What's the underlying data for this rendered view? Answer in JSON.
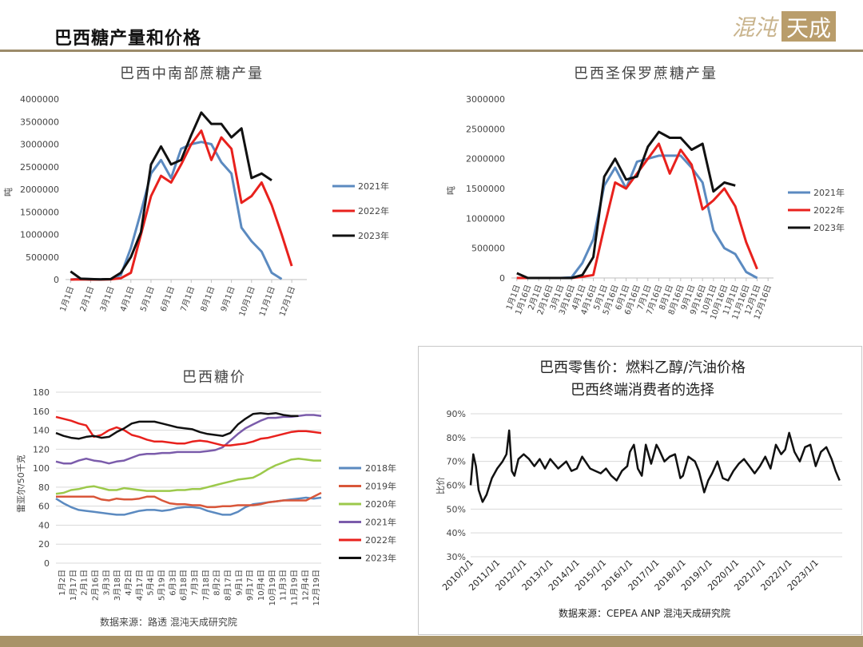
{
  "header": {
    "title": "巴西糖产量和价格"
  },
  "logo": {
    "text_left": "混沌",
    "text_right": "天成"
  },
  "colors": {
    "blue": "#5b8ac0",
    "red": "#e8211d",
    "black": "#111111",
    "orange": "#d9573a",
    "green": "#9cc94b",
    "purple": "#7b5cab",
    "rule": "#9c8b6a",
    "axis": "#bfbfbf",
    "grid": "#d9d9d9"
  },
  "chart_data": [
    {
      "type": "line",
      "title": "巴西中南部蔗糖产量",
      "ylabel": "吨",
      "ylim": [
        0,
        4000000
      ],
      "yticks": [
        0,
        500000,
        1000000,
        1500000,
        2000000,
        2500000,
        3000000,
        3500000,
        4000000
      ],
      "x_points": 24,
      "xtick_labels": [
        "1月1日",
        "2月1日",
        "3月1日",
        "4月1日",
        "5月1日",
        "6月1日",
        "7月1日",
        "8月1日",
        "9月1日",
        "10月1日",
        "11月1日",
        "12月1日"
      ],
      "series": [
        {
          "name": "2021年",
          "color": "#5b8ac0",
          "values": [
            0,
            20000,
            10000,
            5000,
            10000,
            100000,
            700000,
            1500000,
            2350000,
            2650000,
            2250000,
            2900000,
            3000000,
            3050000,
            3000000,
            2600000,
            2350000,
            1150000,
            850000,
            620000,
            150000,
            10000
          ]
        },
        {
          "name": "2022年",
          "color": "#e8211d",
          "values": [
            0,
            5000,
            0,
            0,
            5000,
            30000,
            150000,
            1000000,
            1850000,
            2300000,
            2150000,
            2550000,
            3000000,
            3300000,
            2650000,
            3150000,
            2900000,
            1700000,
            1850000,
            2150000,
            1650000,
            1000000,
            300000
          ]
        },
        {
          "name": "2023年",
          "color": "#111111",
          "values": [
            180000,
            20000,
            10000,
            5000,
            10000,
            150000,
            500000,
            1050000,
            2550000,
            2950000,
            2550000,
            2650000,
            3200000,
            3700000,
            3450000,
            3450000,
            3150000,
            3350000,
            2250000,
            2350000,
            2200000
          ]
        }
      ]
    },
    {
      "type": "line",
      "title": "巴西圣保罗蔗糖产量",
      "ylabel": "吨",
      "ylim": [
        0,
        3000000
      ],
      "yticks": [
        0,
        500000,
        1000000,
        1500000,
        2000000,
        2500000,
        3000000
      ],
      "x_points": 24,
      "xtick_labels": [
        "1月1日",
        "1月16日",
        "2月1日",
        "2月16日",
        "3月1日",
        "3月16日",
        "4月1日",
        "4月16日",
        "5月1日",
        "5月16日",
        "6月1日",
        "6月16日",
        "7月1日",
        "7月16日",
        "8月1日",
        "8月16日",
        "9月1日",
        "9月16日",
        "10月1日",
        "10月16日",
        "11月1日",
        "11月16日",
        "12月1日",
        "12月16日"
      ],
      "series": [
        {
          "name": "2021年",
          "color": "#5b8ac0",
          "values": [
            0,
            0,
            0,
            0,
            0,
            10000,
            250000,
            650000,
            1550000,
            1850000,
            1500000,
            1950000,
            2000000,
            2050000,
            2050000,
            2050000,
            1850000,
            1600000,
            800000,
            500000,
            400000,
            100000,
            0
          ]
        },
        {
          "name": "2022年",
          "color": "#e8211d",
          "values": [
            0,
            0,
            0,
            0,
            0,
            0,
            20000,
            50000,
            850000,
            1600000,
            1500000,
            1750000,
            2000000,
            2250000,
            1750000,
            2150000,
            1900000,
            1150000,
            1300000,
            1500000,
            1200000,
            600000,
            150000
          ]
        },
        {
          "name": "2023年",
          "color": "#111111",
          "values": [
            80000,
            0,
            0,
            0,
            0,
            0,
            50000,
            350000,
            1700000,
            2000000,
            1650000,
            1700000,
            2200000,
            2450000,
            2350000,
            2350000,
            2150000,
            2250000,
            1450000,
            1600000,
            1550000
          ]
        }
      ]
    },
    {
      "type": "line",
      "title": "巴西糖价",
      "ylabel": "雷亚尔/50千克",
      "ylim": [
        0,
        180
      ],
      "yticks": [
        0,
        20,
        40,
        60,
        80,
        100,
        120,
        140,
        160,
        180
      ],
      "xtick_labels": [
        "1月2日",
        "1月17日",
        "2月1日",
        "2月16日",
        "3月3日",
        "3月18日",
        "4月2日",
        "4月17日",
        "5月4日",
        "5月19日",
        "6月3日",
        "6月18日",
        "7月3日",
        "7月18日",
        "8月2日",
        "8月17日",
        "9月1日",
        "9月17日",
        "10月4日",
        "10月19日",
        "11月3日",
        "11月19日",
        "12月4日",
        "12月19日"
      ],
      "series": [
        {
          "name": "2018年",
          "color": "#5b8ac0",
          "values": [
            68,
            63,
            59,
            56,
            55,
            54,
            53,
            52,
            51,
            51,
            53,
            55,
            56,
            56,
            55,
            56,
            58,
            59,
            59,
            58,
            55,
            53,
            51,
            51,
            54,
            59,
            62,
            63,
            64,
            65,
            66,
            67,
            68,
            69,
            68,
            69
          ]
        },
        {
          "name": "2019年",
          "color": "#d9573a",
          "values": [
            70,
            70,
            70,
            70,
            70,
            70,
            67,
            66,
            68,
            67,
            67,
            68,
            70,
            70,
            66,
            63,
            62,
            62,
            61,
            61,
            59,
            59,
            60,
            60,
            61,
            61,
            61,
            62,
            64,
            65,
            66,
            66,
            66,
            66,
            70,
            74
          ]
        },
        {
          "name": "2020年",
          "color": "#9cc94b",
          "values": [
            73,
            74,
            77,
            78,
            80,
            81,
            79,
            77,
            77,
            79,
            78,
            77,
            76,
            76,
            76,
            76,
            77,
            77,
            78,
            78,
            80,
            82,
            84,
            86,
            88,
            89,
            90,
            94,
            99,
            103,
            106,
            109,
            110,
            109,
            108,
            108
          ]
        },
        {
          "name": "2021年",
          "color": "#7b5cab",
          "values": [
            107,
            105,
            105,
            108,
            110,
            108,
            107,
            105,
            107,
            108,
            111,
            114,
            115,
            115,
            116,
            116,
            117,
            117,
            117,
            117,
            118,
            119,
            122,
            129,
            136,
            142,
            146,
            150,
            153,
            153,
            154,
            154,
            155,
            156,
            156,
            155
          ]
        },
        {
          "name": "2022年",
          "color": "#e8211d",
          "values": [
            154,
            152,
            150,
            147,
            145,
            133,
            135,
            140,
            143,
            140,
            135,
            133,
            130,
            128,
            128,
            127,
            126,
            126,
            128,
            129,
            128,
            126,
            124,
            124,
            125,
            126,
            128,
            131,
            132,
            134,
            136,
            138,
            139,
            139,
            138,
            137
          ]
        },
        {
          "name": "2023年",
          "color": "#111111",
          "values": [
            137,
            134,
            132,
            131,
            133,
            134,
            132,
            133,
            138,
            142,
            147,
            149,
            149,
            149,
            147,
            145,
            143,
            142,
            141,
            138,
            136,
            135,
            134,
            137,
            146,
            152,
            157,
            158,
            157,
            158,
            156,
            155,
            155
          ]
        }
      ]
    },
    {
      "type": "line",
      "title": "巴西零售价：燃料乙醇/汽油价格",
      "subtitle": "巴西终端消费者的选择",
      "ylabel": "比价",
      "ylim": [
        30,
        90
      ],
      "ytick_labels": [
        "30%",
        "40%",
        "50%",
        "60%",
        "70%",
        "80%",
        "90%"
      ],
      "yticks": [
        30,
        40,
        50,
        60,
        70,
        80,
        90
      ],
      "xtick_labels": [
        "2010/1/1",
        "2011/1/1",
        "2012/1/1",
        "2013/1/1",
        "2014/1/1",
        "2015/1/1",
        "2016/1/1",
        "2017/1/1",
        "2018/1/1",
        "2019/1/1",
        "2020/1/1",
        "2021/1/1",
        "2022/1/1",
        "2023/1/1"
      ],
      "x_range": [
        2010.0,
        2024.0
      ],
      "series": [
        {
          "name": "",
          "color": "#111111",
          "x": [
            2010.0,
            2010.1,
            2010.2,
            2010.3,
            2010.45,
            2010.6,
            2010.8,
            2011.0,
            2011.2,
            2011.35,
            2011.45,
            2011.55,
            2011.65,
            2011.8,
            2012.0,
            2012.2,
            2012.4,
            2012.6,
            2012.8,
            2013.0,
            2013.3,
            2013.6,
            2013.8,
            2014.0,
            2014.2,
            2014.5,
            2014.7,
            2014.9,
            2015.1,
            2015.3,
            2015.5,
            2015.7,
            2015.9,
            2016.0,
            2016.15,
            2016.3,
            2016.45,
            2016.6,
            2016.8,
            2017.0,
            2017.1,
            2017.3,
            2017.5,
            2017.7,
            2017.9,
            2018.0,
            2018.2,
            2018.45,
            2018.6,
            2018.8,
            2018.95,
            2019.1,
            2019.3,
            2019.5,
            2019.7,
            2019.9,
            2020.1,
            2020.3,
            2020.5,
            2020.7,
            2020.9,
            2021.1,
            2021.3,
            2021.5,
            2021.7,
            2021.85,
            2022.0,
            2022.2,
            2022.4,
            2022.6,
            2022.8,
            2023.0,
            2023.2,
            2023.4,
            2023.6,
            2023.75,
            2023.9
          ],
          "y": [
            60,
            73,
            68,
            58,
            53,
            56,
            63,
            67,
            70,
            73,
            83,
            66,
            64,
            71,
            73,
            71,
            68,
            71,
            67,
            71,
            67,
            70,
            66,
            67,
            72,
            67,
            66,
            65,
            67,
            64,
            62,
            66,
            68,
            74,
            77,
            67,
            64,
            77,
            69,
            77,
            75,
            70,
            72,
            73,
            63,
            64,
            72,
            70,
            66,
            57,
            62,
            65,
            70,
            63,
            62,
            66,
            69,
            71,
            68,
            65,
            68,
            72,
            67,
            77,
            73,
            75,
            82,
            74,
            70,
            76,
            77,
            68,
            74,
            76,
            71,
            66,
            62
          ]
        }
      ]
    }
  ],
  "sources": {
    "left": "数据来源：路透   混沌天成研究院",
    "right": "数据来源：CEPEA ANP 混沌天成研究院"
  }
}
